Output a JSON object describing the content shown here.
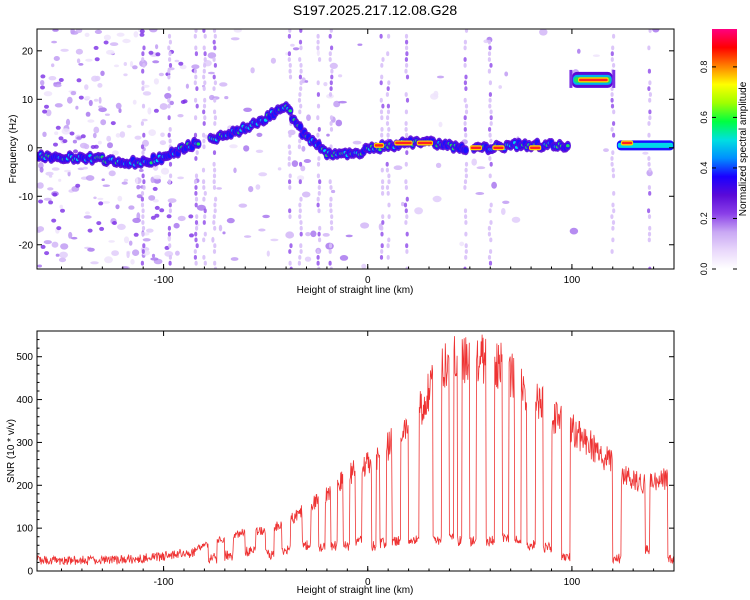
{
  "title": "S197.2025.217.12.08.G28",
  "chart_data": [
    {
      "type": "heatmap",
      "name": "spectrogram",
      "xlabel": "Height of straight line (km)",
      "ylabel": "Frequency (Hz)",
      "xlim": [
        -162,
        150
      ],
      "ylim": [
        -25,
        24.5
      ],
      "x_ticks": [
        -100,
        0,
        100
      ],
      "y_ticks": [
        -20,
        -10,
        0,
        10,
        20
      ],
      "colorbar": {
        "label": "Normalized spectral amplitude",
        "range": [
          0,
          0.95
        ],
        "ticks": [
          0.0,
          0.2,
          0.4,
          0.6,
          0.8
        ],
        "colormap": [
          "#ffffff",
          "#e9d8fb",
          "#c9a8f4",
          "#8a3fe8",
          "#5a0ad8",
          "#1a00ff",
          "#0090ff",
          "#00e0e0",
          "#00ff40",
          "#a0ff00",
          "#ffff00",
          "#ff8000",
          "#ff0000",
          "#ff0080"
        ]
      },
      "ridge": {
        "x": [
          -162,
          -150,
          -140,
          -130,
          -120,
          -110,
          -100,
          -90,
          -80,
          -70,
          -60,
          -50,
          -45,
          -40,
          -35,
          -30,
          -25,
          -20,
          -10,
          0,
          10,
          20,
          30,
          40,
          48,
          60,
          70,
          80,
          90,
          99
        ],
        "y": [
          -1.5,
          -2,
          -2,
          -2.5,
          -3,
          -3,
          -2,
          0,
          1.5,
          2.5,
          4,
          6,
          7.5,
          8.5,
          5,
          2,
          0.5,
          -1,
          -1.5,
          -0.5,
          0.5,
          1,
          1,
          0.5,
          0,
          0,
          0.5,
          0.5,
          0.5,
          0.5
        ]
      },
      "tone_segment": {
        "x": [
          100,
          120
        ],
        "y": 14
      },
      "tail_segment": {
        "x": [
          122,
          150
        ],
        "y": 0.5
      },
      "peak_segments": [
        {
          "x": [
            3,
            8
          ],
          "y": 0.5
        },
        {
          "x": [
            13,
            22
          ],
          "y": 1
        },
        {
          "x": [
            24,
            32
          ],
          "y": 1
        },
        {
          "x": [
            50,
            56
          ],
          "y": 0
        },
        {
          "x": [
            61,
            67
          ],
          "y": 0
        },
        {
          "x": [
            79,
            85
          ],
          "y": 0
        },
        {
          "x": [
            103,
            118
          ],
          "y": 14
        },
        {
          "x": [
            124,
            130
          ],
          "y": 1
        }
      ],
      "gaps_x": [
        [
          -82,
          -78
        ],
        [
          49,
          51
        ],
        [
          99,
          100
        ],
        [
          120,
          123
        ]
      ],
      "vertical_streaks_x": [
        -110,
        -97,
        -84,
        -80,
        -75,
        -38,
        -33,
        -24,
        -18,
        7,
        10,
        19,
        48,
        60,
        120,
        138
      ]
    },
    {
      "type": "line",
      "name": "snr",
      "xlabel": "Height of straight line (km)",
      "ylabel": "SNR (10 * v/v)",
      "xlim": [
        -162,
        150
      ],
      "ylim": [
        0,
        560
      ],
      "x_ticks": [
        -100,
        0,
        100
      ],
      "y_ticks": [
        0,
        100,
        200,
        300,
        400,
        500
      ],
      "color": "#ee3333",
      "envelope": {
        "x": [
          -162,
          -140,
          -120,
          -110,
          -100,
          -90,
          -80,
          -70,
          -60,
          -50,
          -40,
          -35,
          -30,
          -25,
          -20,
          -15,
          -10,
          -5,
          0,
          5,
          10,
          15,
          20,
          25,
          30,
          35,
          40,
          45,
          50,
          55,
          60,
          65,
          70,
          75,
          80,
          85,
          90,
          95,
          100,
          105,
          110,
          115,
          120,
          125,
          130,
          135,
          140,
          145,
          150
        ],
        "y": [
          20,
          20,
          22,
          25,
          30,
          40,
          60,
          75,
          90,
          95,
          110,
          130,
          150,
          160,
          175,
          200,
          220,
          240,
          250,
          265,
          290,
          320,
          340,
          370,
          420,
          470,
          485,
          495,
          500,
          500,
          490,
          480,
          460,
          430,
          410,
          390,
          360,
          345,
          330,
          310,
          290,
          270,
          250,
          225,
          210,
          205,
          210,
          215,
          210
        ]
      },
      "dropouts": [
        {
          "x": [
            -88,
            -85
          ],
          "y": 40
        },
        {
          "x": [
            -78,
            -74
          ],
          "y": 30
        },
        {
          "x": [
            -70,
            -66
          ],
          "y": 35
        },
        {
          "x": [
            -60,
            -55
          ],
          "y": 45
        },
        {
          "x": [
            -50,
            -46
          ],
          "y": 40
        },
        {
          "x": [
            -42,
            -38
          ],
          "y": 50
        },
        {
          "x": [
            -32,
            -28
          ],
          "y": 60
        },
        {
          "x": [
            -24,
            -21
          ],
          "y": 55
        },
        {
          "x": [
            -18,
            -15
          ],
          "y": 60
        },
        {
          "x": [
            -12,
            -9
          ],
          "y": 60
        },
        {
          "x": [
            -6,
            -3
          ],
          "y": 70
        },
        {
          "x": [
            2,
            4
          ],
          "y": 60
        },
        {
          "x": [
            6,
            9
          ],
          "y": 65
        },
        {
          "x": [
            12,
            16
          ],
          "y": 70
        },
        {
          "x": [
            20,
            25
          ],
          "y": 75
        },
        {
          "x": [
            32,
            36
          ],
          "y": 70
        },
        {
          "x": [
            40,
            42
          ],
          "y": 80
        },
        {
          "x": [
            44,
            46
          ],
          "y": 70
        },
        {
          "x": [
            50,
            53
          ],
          "y": 70
        },
        {
          "x": [
            58,
            62
          ],
          "y": 70
        },
        {
          "x": [
            66,
            69
          ],
          "y": 75
        },
        {
          "x": [
            72,
            75
          ],
          "y": 70
        },
        {
          "x": [
            78,
            82
          ],
          "y": 60
        },
        {
          "x": [
            86,
            90
          ],
          "y": 55
        },
        {
          "x": [
            95,
            99
          ],
          "y": 30
        },
        {
          "x": [
            120,
            124
          ],
          "y": 30
        },
        {
          "x": [
            136,
            138
          ],
          "y": 50
        },
        {
          "x": [
            147,
            150
          ],
          "y": 30
        }
      ]
    }
  ]
}
